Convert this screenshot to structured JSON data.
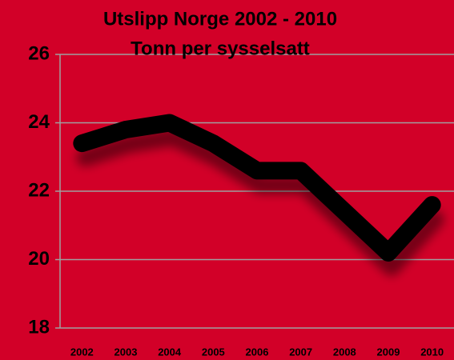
{
  "chart_data": {
    "type": "line",
    "title": "Utslipp Norge 2002 - 2010",
    "subtitle": "Tonn per sysselsatt",
    "categories": [
      "2002",
      "2003",
      "2004",
      "2005",
      "2006",
      "2007",
      "2008",
      "2009",
      "2010"
    ],
    "series": [
      {
        "name": "Tonn per sysselsatt",
        "color": "#000000",
        "values": [
          23.4,
          23.8,
          24.0,
          23.4,
          22.6,
          22.6,
          21.4,
          20.2,
          21.6
        ]
      }
    ],
    "ylim": [
      18,
      26
    ],
    "yticks": [
      18,
      20,
      22,
      24,
      26
    ],
    "grid": true
  }
}
